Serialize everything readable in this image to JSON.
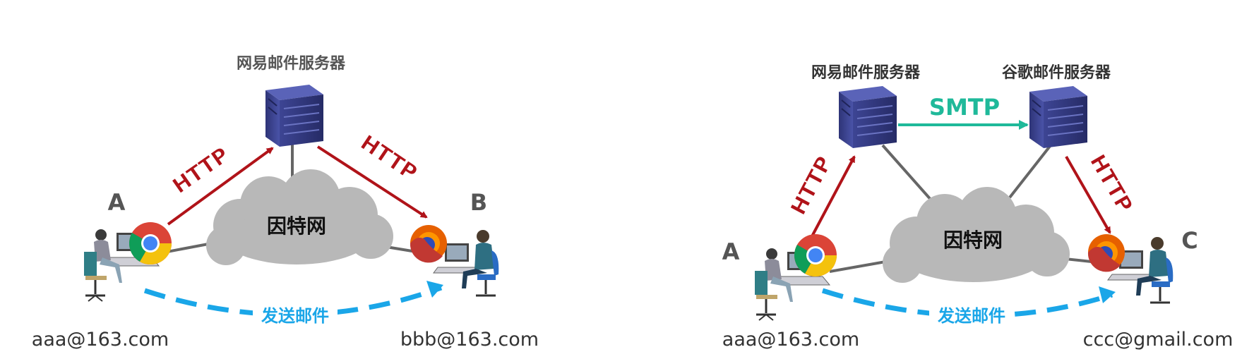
{
  "colors": {
    "http": "#b01319",
    "smtp": "#1fb99a",
    "send": "#1aa6e8",
    "server": "#3d4594",
    "cloud": "#b8b8b8",
    "line": "#666666",
    "text_gray": "#555555",
    "text_dark": "#333333"
  },
  "left": {
    "server_label": "网易邮件服务器",
    "cloud_label": "因特网",
    "http_up": "HTTP",
    "http_down": "HTTP",
    "node_a": "A",
    "node_b": "B",
    "send_label": "发送邮件",
    "email_a": "aaa@163.com",
    "email_b": "bbb@163.com"
  },
  "right": {
    "server1_label": "网易邮件服务器",
    "server2_label": "谷歌邮件服务器",
    "smtp_label": "SMTP",
    "cloud_label": "因特网",
    "http_up": "HTTP",
    "http_down": "HTTP",
    "node_a": "A",
    "node_c": "C",
    "send_label": "发送邮件",
    "email_a": "aaa@163.com",
    "email_c": "ccc@gmail.com"
  }
}
